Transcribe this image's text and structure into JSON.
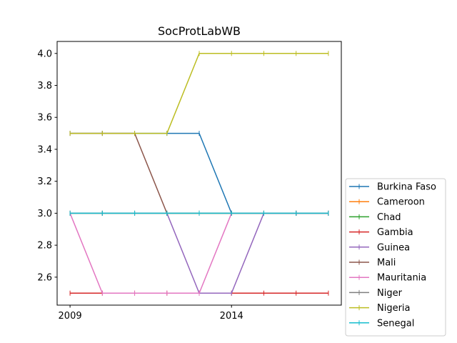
{
  "chart_data": {
    "type": "line",
    "title": "SocProtLabWB",
    "xlabel": "",
    "ylabel": "",
    "x": [
      2009,
      2010,
      2011,
      2012,
      2013,
      2014,
      2015,
      2016,
      2017
    ],
    "xticks": [
      2009,
      2014
    ],
    "xlim": [
      2008.6,
      2017.4
    ],
    "yticks": [
      2.6,
      2.8,
      3.0,
      3.2,
      3.4,
      3.6,
      3.8,
      4.0
    ],
    "ytick_labels": [
      "2.6",
      "2.8",
      "3.0",
      "3.2",
      "3.4",
      "3.6",
      "3.8",
      "4.0"
    ],
    "ylim": [
      2.425,
      4.075
    ],
    "grid": false,
    "legend_position": "outside-right-bottom",
    "series": [
      {
        "name": "Burkina Faso",
        "color": "#1f77b4",
        "values": [
          3.5,
          3.5,
          3.5,
          3.5,
          3.5,
          3.0,
          3.0,
          3.0,
          3.0
        ]
      },
      {
        "name": "Cameroon",
        "color": "#ff7f0e",
        "values": [
          3.0,
          3.0,
          3.0,
          3.0,
          3.0,
          3.0,
          3.0,
          3.0,
          3.0
        ]
      },
      {
        "name": "Chad",
        "color": "#2ca02c",
        "values": [
          3.0,
          3.0,
          3.0,
          3.0,
          3.0,
          3.0,
          3.0,
          3.0,
          3.0
        ]
      },
      {
        "name": "Gambia",
        "color": "#d62728",
        "values": [
          2.5,
          2.5,
          2.5,
          2.5,
          2.5,
          2.5,
          2.5,
          2.5,
          2.5
        ]
      },
      {
        "name": "Guinea",
        "color": "#9467bd",
        "values": [
          3.0,
          3.0,
          3.0,
          3.0,
          2.5,
          2.5,
          3.0,
          3.0,
          3.0
        ]
      },
      {
        "name": "Mali",
        "color": "#8c564b",
        "values": [
          3.5,
          3.5,
          3.5,
          3.0,
          3.0,
          3.0,
          3.0,
          3.0,
          3.0
        ]
      },
      {
        "name": "Mauritania",
        "color": "#e377c2",
        "values": [
          3.0,
          2.5,
          2.5,
          2.5,
          2.5,
          3.0,
          3.0,
          3.0,
          3.0
        ]
      },
      {
        "name": "Niger",
        "color": "#7f7f7f",
        "values": [
          3.0,
          3.0,
          3.0,
          3.0,
          3.0,
          3.0,
          3.0,
          3.0,
          3.0
        ]
      },
      {
        "name": "Nigeria",
        "color": "#bcbd22",
        "values": [
          3.5,
          3.5,
          3.5,
          3.5,
          4.0,
          4.0,
          4.0,
          4.0,
          4.0
        ]
      },
      {
        "name": "Senegal",
        "color": "#17becf",
        "values": [
          3.0,
          3.0,
          3.0,
          3.0,
          3.0,
          3.0,
          3.0,
          3.0,
          3.0
        ]
      }
    ]
  }
}
